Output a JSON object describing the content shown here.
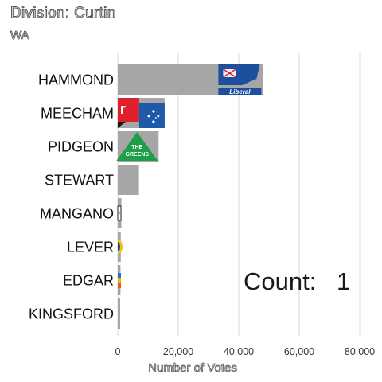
{
  "header": {
    "title": "Division: Curtin",
    "subtitle": "WA"
  },
  "counter": {
    "label": "Count:",
    "value": "1"
  },
  "colors": {
    "bar": "#a6a6a6",
    "grid": "#d9d9d9",
    "liberal_blue": "#1c4f9c",
    "labor_red": "#e0202d",
    "greens_green": "#1f9e48"
  },
  "chart_data": {
    "type": "bar",
    "orientation": "horizontal",
    "title": "Division: Curtin",
    "subtitle": "WA",
    "xlabel": "Number of Votes",
    "ylabel": "",
    "xlim": [
      0,
      80000
    ],
    "xticks": [
      0,
      20000,
      40000,
      60000,
      80000
    ],
    "xtick_labels": [
      "0",
      "20,000",
      "40,000",
      "60,000",
      "80,000"
    ],
    "grid": true,
    "categories": [
      "HAMMOND",
      "MEECHAM",
      "PIDGEON",
      "STEWART",
      "MANGANO",
      "LEVER",
      "EDGAR",
      "KINGSFORD"
    ],
    "values": [
      48000,
      15500,
      13500,
      7000,
      1200,
      1000,
      900,
      700
    ],
    "logos": [
      "Liberal",
      "Labor",
      "The Greens",
      "",
      "",
      "",
      "",
      ""
    ],
    "annotations": [
      "Count:  1"
    ]
  }
}
